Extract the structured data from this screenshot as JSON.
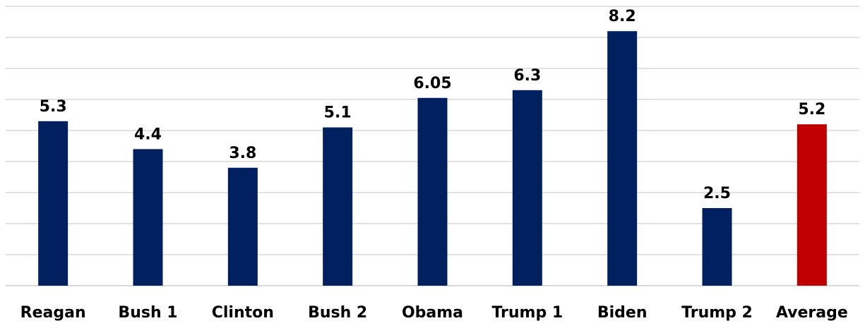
{
  "chart_data": {
    "type": "bar",
    "categories": [
      "Reagan",
      "Bush 1",
      "Clinton",
      "Bush 2",
      "Obama",
      "Trump 1",
      "Biden",
      "Trump 2",
      "Average"
    ],
    "values": [
      5.3,
      4.4,
      3.8,
      5.1,
      6.05,
      6.3,
      8.2,
      2.5,
      5.2
    ],
    "value_labels": [
      "5.3",
      "4.4",
      "3.8",
      "5.1",
      "6.05",
      "6.3",
      "8.2",
      "2.5",
      "5.2"
    ],
    "bar_colors": [
      "#002060",
      "#002060",
      "#002060",
      "#002060",
      "#002060",
      "#002060",
      "#002060",
      "#002060",
      "#c00000"
    ],
    "ylim": [
      0,
      9
    ],
    "grid": true,
    "legend": "none"
  }
}
